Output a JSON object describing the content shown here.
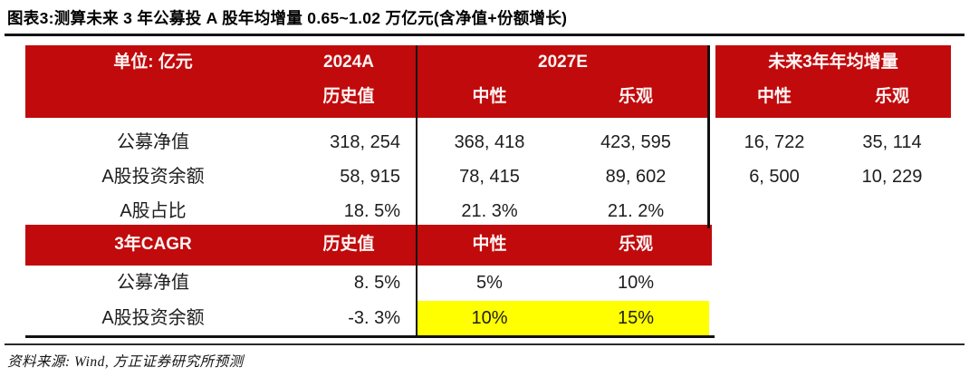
{
  "chart_data": {
    "type": "table",
    "title": "图表3:测算未来 3 年公募投 A 股年均增量 0.65~1.02 万亿元(含净值+份额增长)",
    "unit_header": "单位: 亿元",
    "columns": {
      "y2024": "2024A",
      "y2024_sub": "历史值",
      "y2027": "2027E",
      "y2027_neutral": "中性",
      "y2027_optimistic": "乐观",
      "future3y": "未来3年年均增量",
      "future_neutral": "中性",
      "future_optimistic": "乐观"
    },
    "rows": [
      {
        "label": "公募净值",
        "hist_2024": "318, 254",
        "neutral_2027": "368, 418",
        "optimistic_2027": "423, 595",
        "neutral_incr": "16, 722",
        "optimistic_incr": "35, 114"
      },
      {
        "label": "A股投资余额",
        "hist_2024": "58, 915",
        "neutral_2027": "78, 415",
        "optimistic_2027": "89, 602",
        "neutral_incr": "6, 500",
        "optimistic_incr": "10, 229"
      },
      {
        "label": "A股占比",
        "hist_2024": "18. 5%",
        "neutral_2027": "21. 3%",
        "optimistic_2027": "21. 2%",
        "neutral_incr": "",
        "optimistic_incr": ""
      }
    ],
    "cagr_section": {
      "label": "3年CAGR",
      "hist_header": "历史值",
      "neutral_header": "中性",
      "optimistic_header": "乐观",
      "rows": [
        {
          "label": "公募净值",
          "hist": "8. 5%",
          "neutral": "5%",
          "optimistic": "10%",
          "highlighted": false
        },
        {
          "label": "A股投资余额",
          "hist": "-3. 3%",
          "neutral": "10%",
          "optimistic": "15%",
          "highlighted": true
        }
      ]
    },
    "source": "资料来源: Wind, 方正证券研究所预测",
    "colors": {
      "header_red": "#C00A0C",
      "highlight_yellow": "#FFFF00",
      "header_text": "#FFFFFF",
      "body_text": "#1D1D1F"
    }
  }
}
